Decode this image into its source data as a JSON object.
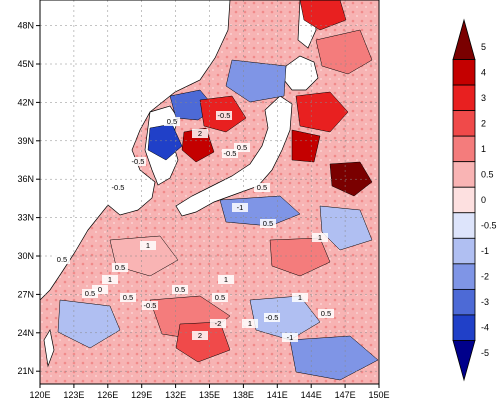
{
  "map": {
    "lon_labels": [
      "120E",
      "123E",
      "126E",
      "129E",
      "132E",
      "135E",
      "138E",
      "141E",
      "144E",
      "147E",
      "150E"
    ],
    "lat_labels": [
      "21N",
      "24N",
      "27N",
      "30N",
      "33N",
      "36N",
      "39N",
      "42N",
      "45N",
      "48N"
    ],
    "contour_labels": [
      "0.5",
      "1",
      "0.5",
      "-0.5",
      "-1",
      "0.5",
      "-0.5",
      "2",
      "0.5",
      "1",
      "-0.5",
      "0.5",
      "1",
      "0.5",
      "-2",
      "0.5",
      "-0.5",
      "0.5",
      "0",
      "1",
      "-0.5",
      "-0.5",
      "2",
      "0.5",
      "-1",
      "0.5",
      "0.5",
      "1",
      "1"
    ]
  },
  "colorbar": {
    "levels": [
      "5",
      "4",
      "3",
      "2",
      "1",
      "0.5",
      "0",
      "-0.5",
      "-1",
      "-2",
      "-3",
      "-4",
      "-5"
    ],
    "colors": [
      "#7a0000",
      "#c40000",
      "#e82020",
      "#f04a4a",
      "#f47c7c",
      "#f9b4b4",
      "#fde0e0",
      "#dde4fb",
      "#b0bff2",
      "#7f95e6",
      "#4d6ad6",
      "#2040c8",
      "#00008b"
    ]
  }
}
